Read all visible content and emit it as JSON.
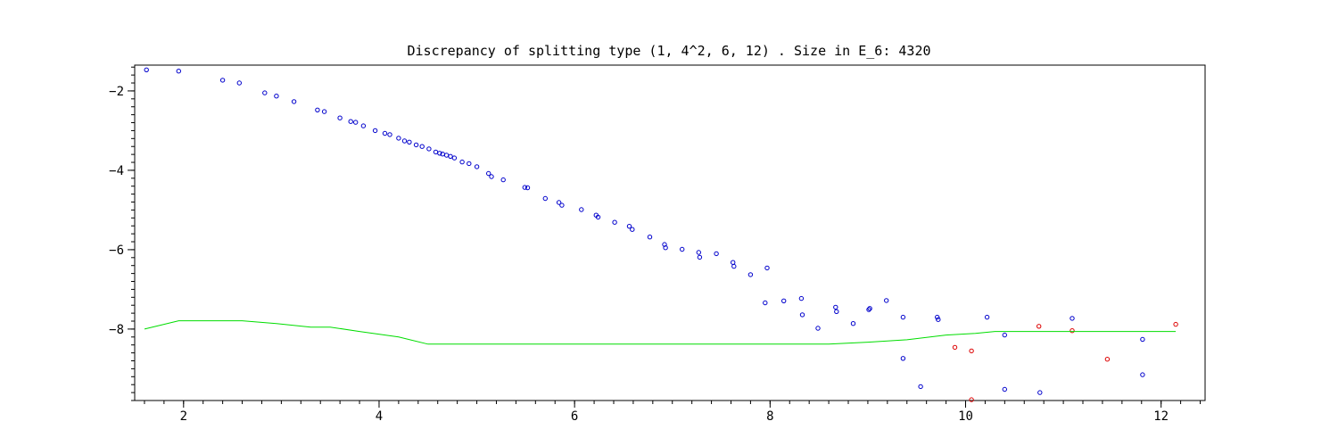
{
  "chart_data": {
    "type": "scatter",
    "title": "Discrepancy of splitting type (1, 4^2, 6, 12) .  Size in E_6: 4320",
    "xlabel": "",
    "ylabel": "",
    "xlim": [
      1.5,
      12.45
    ],
    "ylim": [
      -9.8,
      -1.35
    ],
    "x_ticks": [
      2,
      4,
      6,
      8,
      10,
      12
    ],
    "x_tick_labels": [
      "2",
      "4",
      "6",
      "8",
      "10",
      "12"
    ],
    "y_ticks": [
      -2,
      -4,
      -6,
      -8
    ],
    "y_tick_labels": [
      "−2",
      "−4",
      "−6",
      "−8"
    ],
    "x_minor_step": 0.2,
    "y_minor_step": 0.2,
    "grid": false,
    "legend": "none",
    "colors": {
      "blue": "#0000cc",
      "red": "#dd0000",
      "green": "#00dd00",
      "axis": "#000000"
    },
    "series": [
      {
        "type": "scatter",
        "color": "#0000cc",
        "points": [
          [
            1.62,
            -1.47
          ],
          [
            1.95,
            -1.5
          ],
          [
            2.4,
            -1.73
          ],
          [
            2.57,
            -1.8
          ],
          [
            2.83,
            -2.05
          ],
          [
            2.95,
            -2.13
          ],
          [
            3.13,
            -2.27
          ],
          [
            3.37,
            -2.48
          ],
          [
            3.44,
            -2.52
          ],
          [
            3.6,
            -2.68
          ],
          [
            3.71,
            -2.77
          ],
          [
            3.76,
            -2.79
          ],
          [
            3.84,
            -2.88
          ],
          [
            3.96,
            -3.0
          ],
          [
            4.06,
            -3.07
          ],
          [
            4.11,
            -3.1
          ],
          [
            4.2,
            -3.19
          ],
          [
            4.26,
            -3.26
          ],
          [
            4.31,
            -3.29
          ],
          [
            4.38,
            -3.36
          ],
          [
            4.44,
            -3.4
          ],
          [
            4.51,
            -3.46
          ],
          [
            4.58,
            -3.54
          ],
          [
            4.62,
            -3.57
          ],
          [
            4.65,
            -3.59
          ],
          [
            4.69,
            -3.62
          ],
          [
            4.73,
            -3.65
          ],
          [
            4.77,
            -3.69
          ],
          [
            4.85,
            -3.79
          ],
          [
            4.92,
            -3.83
          ],
          [
            5.0,
            -3.91
          ],
          [
            5.12,
            -4.08
          ],
          [
            5.15,
            -4.16
          ],
          [
            5.27,
            -4.24
          ],
          [
            5.49,
            -4.43
          ],
          [
            5.52,
            -4.44
          ],
          [
            5.7,
            -4.71
          ],
          [
            5.84,
            -4.81
          ],
          [
            5.87,
            -4.88
          ],
          [
            6.07,
            -4.99
          ],
          [
            6.22,
            -5.13
          ],
          [
            6.24,
            -5.18
          ],
          [
            6.41,
            -5.31
          ],
          [
            6.56,
            -5.41
          ],
          [
            6.59,
            -5.49
          ],
          [
            6.77,
            -5.68
          ],
          [
            6.92,
            -5.87
          ],
          [
            6.93,
            -5.95
          ],
          [
            7.1,
            -5.99
          ],
          [
            7.27,
            -6.07
          ],
          [
            7.28,
            -6.19
          ],
          [
            7.45,
            -6.1
          ],
          [
            7.62,
            -6.32
          ],
          [
            7.63,
            -6.42
          ],
          [
            7.8,
            -6.63
          ],
          [
            7.97,
            -6.46
          ],
          [
            7.95,
            -7.34
          ],
          [
            8.14,
            -7.29
          ],
          [
            8.32,
            -7.23
          ],
          [
            8.33,
            -7.64
          ],
          [
            8.49,
            -7.98
          ],
          [
            8.67,
            -7.45
          ],
          [
            8.68,
            -7.56
          ],
          [
            8.85,
            -7.86
          ],
          [
            9.01,
            -7.51
          ],
          [
            9.02,
            -7.48
          ],
          [
            9.19,
            -7.28
          ],
          [
            9.36,
            -7.7
          ],
          [
            9.36,
            -8.74
          ],
          [
            9.54,
            -9.45
          ],
          [
            9.71,
            -7.7
          ],
          [
            9.72,
            -7.76
          ],
          [
            10.22,
            -7.7
          ],
          [
            10.4,
            -8.15
          ],
          [
            10.4,
            -9.52
          ],
          [
            10.76,
            -9.6
          ],
          [
            11.09,
            -7.73
          ],
          [
            11.81,
            -8.26
          ],
          [
            11.81,
            -9.15
          ]
        ]
      },
      {
        "type": "scatter",
        "color": "#dd0000",
        "points": [
          [
            9.89,
            -8.46
          ],
          [
            10.06,
            -8.55
          ],
          [
            10.06,
            -9.78
          ],
          [
            10.75,
            -7.93
          ],
          [
            11.09,
            -8.04
          ],
          [
            11.45,
            -8.76
          ],
          [
            12.15,
            -7.88
          ]
        ]
      },
      {
        "type": "line",
        "color": "#00dd00",
        "points": [
          [
            1.6,
            -8.0
          ],
          [
            1.95,
            -7.79
          ],
          [
            2.6,
            -7.79
          ],
          [
            2.95,
            -7.86
          ],
          [
            3.3,
            -7.95
          ],
          [
            3.5,
            -7.95
          ],
          [
            3.8,
            -8.06
          ],
          [
            4.2,
            -8.2
          ],
          [
            4.5,
            -8.38
          ],
          [
            6.0,
            -8.38
          ],
          [
            7.8,
            -8.38
          ],
          [
            8.6,
            -8.38
          ],
          [
            9.0,
            -8.33
          ],
          [
            9.4,
            -8.27
          ],
          [
            9.8,
            -8.15
          ],
          [
            10.1,
            -8.11
          ],
          [
            10.3,
            -8.06
          ],
          [
            11.0,
            -8.06
          ],
          [
            12.15,
            -8.06
          ]
        ]
      }
    ]
  }
}
